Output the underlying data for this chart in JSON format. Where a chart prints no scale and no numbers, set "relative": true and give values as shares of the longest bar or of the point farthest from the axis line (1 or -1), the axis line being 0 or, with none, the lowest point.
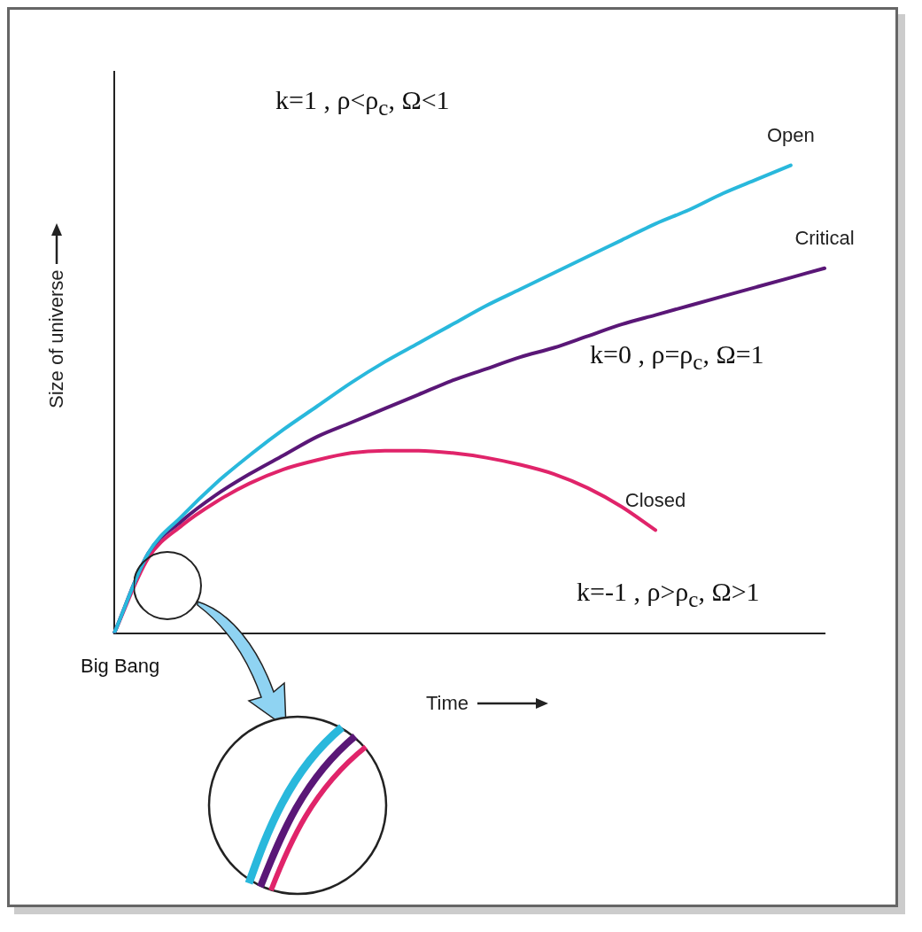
{
  "chart_data": {
    "type": "line",
    "relative": true,
    "xlabel": "Time",
    "ylabel": "Size of universe",
    "categories": [
      null,
      null,
      null,
      null,
      null,
      null,
      null,
      null,
      null,
      null,
      null,
      null,
      null,
      null,
      null,
      null,
      null,
      null,
      null,
      null,
      null,
      null
    ],
    "series": [
      {
        "name": "Open",
        "color": "#29b8dc",
        "values": [
          0,
          0.17,
          0.25,
          0.32,
          0.38,
          0.435,
          0.485,
          0.535,
          0.58,
          0.62,
          0.66,
          0.7,
          0.735,
          0.77,
          0.805,
          0.84,
          0.875,
          0.905,
          0.94,
          0.97,
          1,
          null
        ]
      },
      {
        "name": "Critical",
        "color": "#5a1777",
        "values": [
          0,
          0.17,
          0.24,
          0.295,
          0.34,
          0.38,
          0.42,
          0.45,
          0.48,
          0.51,
          0.54,
          0.565,
          0.59,
          0.61,
          0.635,
          0.66,
          0.68,
          0.7,
          0.72,
          0.74,
          0.76,
          0.78
        ]
      },
      {
        "name": "Closed",
        "color": "#e0246a",
        "values": [
          0,
          0.16,
          0.23,
          0.28,
          0.32,
          0.35,
          0.37,
          0.385,
          0.39,
          0.39,
          0.385,
          0.375,
          0.36,
          0.34,
          0.31,
          0.27,
          0.22,
          null,
          null,
          null,
          null,
          null
        ]
      }
    ],
    "annotations": [
      "k=1 , ρ<ρ$_{c}$, Ω<1",
      "k=0 , ρ=ρ$_{c}$, Ω=1",
      "k=-1 , ρ>ρ$_{c}$, Ω>1",
      "Big Bang"
    ],
    "legend": false,
    "grid": false,
    "marker": "none",
    "line_style": "solid",
    "tick_labels": "x"
  }
}
